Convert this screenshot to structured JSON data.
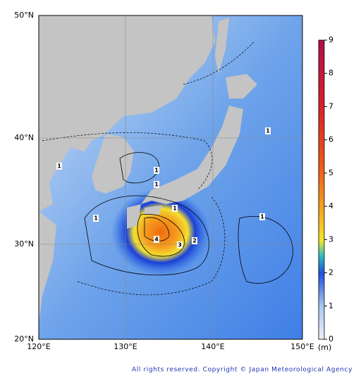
{
  "map": {
    "lon_labels": [
      "120°E",
      "130°E",
      "140°E",
      "150°E"
    ],
    "lat_labels": [
      "50°N",
      "40°N",
      "30°N",
      "20°N"
    ],
    "colorbar": {
      "ticks": [
        0,
        1,
        2,
        3,
        4,
        5,
        6,
        7,
        8,
        9
      ],
      "range": [
        0,
        9
      ],
      "unit": "(m)"
    },
    "contour_labels": [
      "1",
      "1",
      "1",
      "1",
      "1",
      "1",
      "1",
      "4",
      "3",
      "2"
    ],
    "copyright": "All rights reserved. Copyright © Japan Meteorological Agency"
  }
}
